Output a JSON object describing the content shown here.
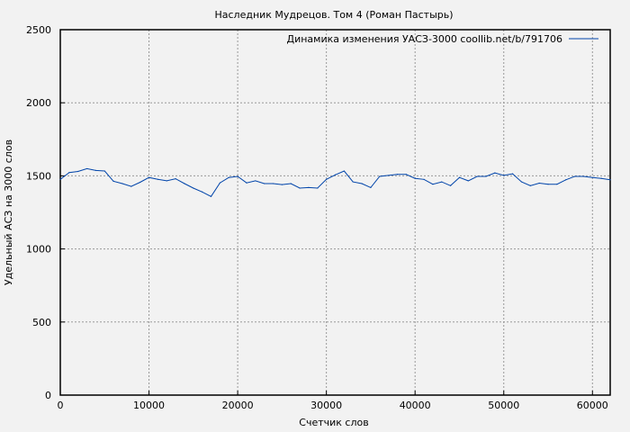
{
  "chart_data": {
    "type": "line",
    "title": "Наследник Мудрецов. Том 4 (Роман Пастырь)",
    "xlabel": "Счетчик слов",
    "ylabel": "Удельный АСЗ на 3000 слов",
    "xlim": [
      0,
      62000
    ],
    "ylim": [
      0,
      2500
    ],
    "xticks": [
      0,
      10000,
      20000,
      30000,
      40000,
      50000,
      60000
    ],
    "yticks": [
      0,
      500,
      1000,
      1500,
      2000,
      2500
    ],
    "grid": true,
    "legend_position": "top-right",
    "series": [
      {
        "name": "Динамика изменения УАСЗ-3000 coollib.net/b/791706",
        "color": "#0044aa",
        "x": [
          0,
          1000,
          2000,
          3000,
          4000,
          5000,
          6000,
          7000,
          8000,
          9000,
          10000,
          11000,
          12000,
          13000,
          14000,
          15000,
          16000,
          17000,
          18000,
          19000,
          20000,
          21000,
          22000,
          23000,
          24000,
          25000,
          26000,
          27000,
          28000,
          29000,
          30000,
          31000,
          32000,
          33000,
          34000,
          35000,
          36000,
          37000,
          38000,
          39000,
          40000,
          41000,
          42000,
          43000,
          44000,
          45000,
          46000,
          47000,
          48000,
          49000,
          50000,
          51000,
          52000,
          53000,
          54000,
          55000,
          56000,
          57000,
          58000,
          59000,
          60000,
          61000,
          62000
        ],
        "y": [
          1476,
          1523,
          1530,
          1549,
          1537,
          1533,
          1463,
          1447,
          1428,
          1456,
          1489,
          1476,
          1466,
          1480,
          1447,
          1416,
          1390,
          1359,
          1452,
          1489,
          1496,
          1452,
          1466,
          1447,
          1447,
          1440,
          1447,
          1416,
          1420,
          1416,
          1476,
          1507,
          1533,
          1459,
          1447,
          1420,
          1496,
          1503,
          1510,
          1510,
          1483,
          1476,
          1443,
          1459,
          1433,
          1489,
          1466,
          1496,
          1496,
          1520,
          1503,
          1514,
          1459,
          1433,
          1450,
          1443,
          1443,
          1473,
          1496,
          1496,
          1489,
          1483,
          1473
        ]
      }
    ]
  }
}
